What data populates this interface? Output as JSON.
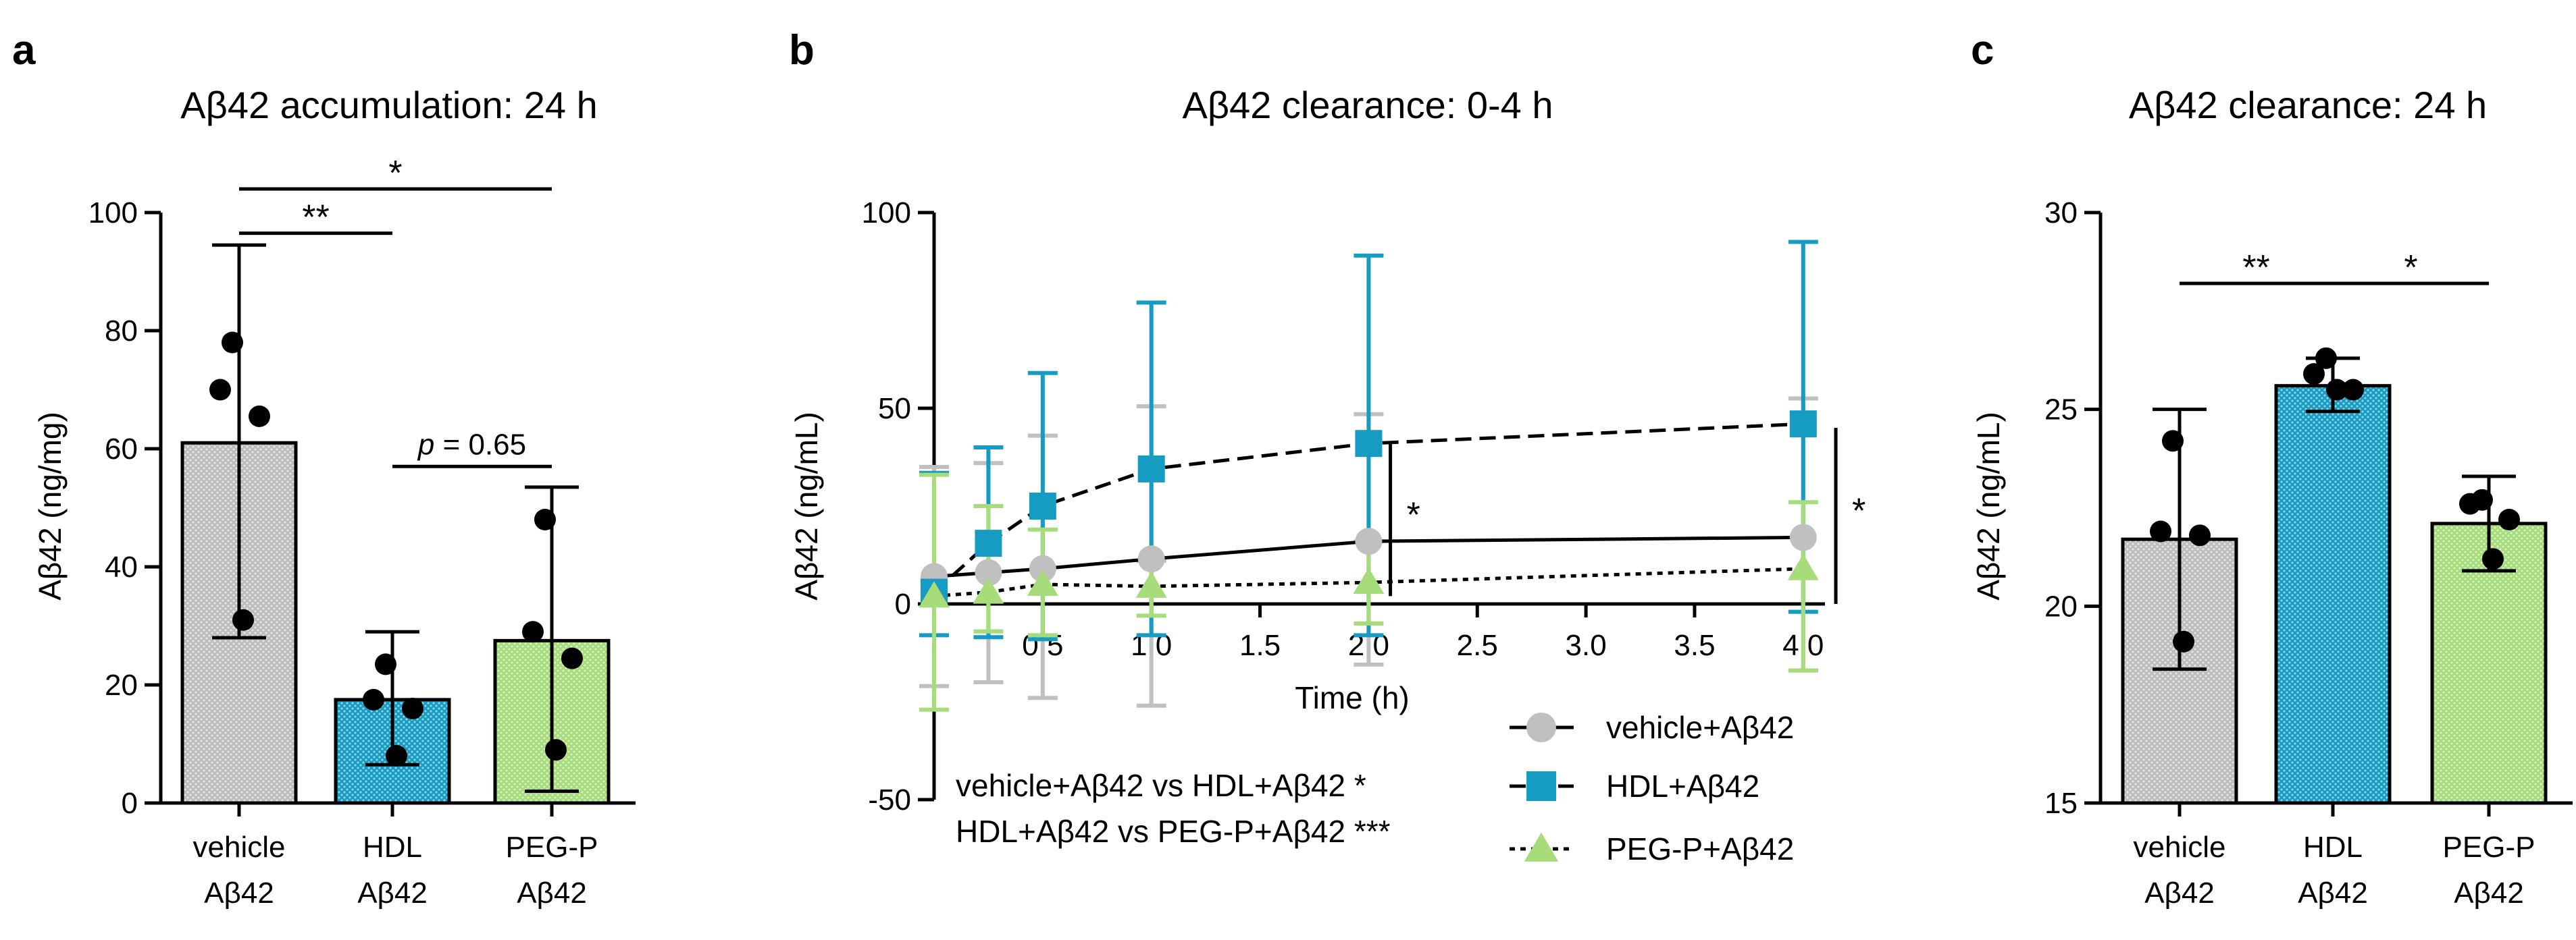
{
  "colors": {
    "vehicle": "#c0c0c0",
    "hdl": "#169cc2",
    "peg": "#a6dc7a",
    "ink": "#000000"
  },
  "chart_data": [
    {
      "panel": "a",
      "type": "bar",
      "title": "Aβ42 accumulation: 24 h",
      "ylabel": "Aβ42 (ng/mg)",
      "ylim": [
        0,
        100
      ],
      "yticks": [
        "0",
        "20",
        "40",
        "60",
        "80",
        "100"
      ],
      "categories": [
        [
          "vehicle",
          "Aβ42"
        ],
        [
          "HDL",
          "Aβ42"
        ],
        [
          "PEG-P",
          "Aβ42"
        ]
      ],
      "values": [
        61,
        17.5,
        27.5
      ],
      "error": [
        [
          28,
          94.5
        ],
        [
          6.5,
          29
        ],
        [
          2,
          53.5
        ]
      ],
      "points": [
        [
          78,
          70,
          65.5,
          31
        ],
        [
          23.5,
          17.5,
          16,
          8
        ],
        [
          48,
          29,
          24.5,
          9
        ]
      ],
      "comparisons": [
        {
          "from": 0,
          "to": 1,
          "label": "**",
          "y": 96.5
        },
        {
          "from": 0,
          "to": 2,
          "label": "*",
          "y": 104
        },
        {
          "from": 1,
          "to": 2,
          "label": "p = 0.65",
          "label_italic": "p",
          "label_rest": " = 0.65",
          "y": 57
        }
      ]
    },
    {
      "panel": "b",
      "type": "line",
      "title": "Aβ42 clearance: 0-4 h",
      "xlabel": "Time (h)",
      "ylabel": "Aβ42 (ng/mL)",
      "xlim": [
        0,
        4.1
      ],
      "ylim": [
        -50,
        100
      ],
      "xticks": [
        "0.5",
        "1.0",
        "1.5",
        "2.0",
        "2.5",
        "3.0",
        "3.5",
        "4.0"
      ],
      "yticks": [
        "-50",
        "0",
        "50",
        "100"
      ],
      "series": [
        {
          "name": "vehicle+Aβ42",
          "marker": "circle",
          "dash": "solid",
          "x": [
            0.0,
            0.25,
            0.5,
            1.0,
            2.0,
            4.0
          ],
          "y": [
            7,
            8,
            9,
            11.5,
            16,
            17
          ],
          "err": [
            [
              -21,
              35
            ],
            [
              -20,
              36
            ],
            [
              -24,
              43
            ],
            [
              -26,
              50.5
            ],
            [
              -15.5,
              48.5
            ],
            [
              -17,
              52.5
            ]
          ]
        },
        {
          "name": "HDL+Aβ42",
          "marker": "square",
          "dash": "dashed",
          "x": [
            0.0,
            0.25,
            0.5,
            1.0,
            2.0,
            4.0
          ],
          "y": [
            3,
            15.5,
            25,
            34.5,
            41,
            46
          ],
          "err": [
            [
              -8,
              33.5
            ],
            [
              -8.5,
              40
            ],
            [
              -9,
              59
            ],
            [
              -8,
              77
            ],
            [
              -8,
              89
            ],
            [
              -2,
              92.5
            ]
          ]
        },
        {
          "name": "PEG-P+Aβ42",
          "marker": "triangle",
          "dash": "dotted",
          "x": [
            0.0,
            0.25,
            0.5,
            1.0,
            2.0,
            4.0
          ],
          "y": [
            2,
            3,
            5,
            4.5,
            5.5,
            9
          ],
          "err": [
            [
              -27,
              33
            ],
            [
              -7,
              25
            ],
            [
              -8,
              19
            ],
            [
              -3,
              11
            ],
            [
              -5,
              16
            ],
            [
              -17,
              26
            ]
          ]
        }
      ],
      "annotations": [
        {
          "label": "*",
          "x": 2.1,
          "y_from": 2,
          "y_to": 41
        },
        {
          "label": "*",
          "x": 4.15,
          "y_from": 0,
          "y_to": 45
        }
      ],
      "notes": [
        "vehicle+Aβ42 vs HDL+Aβ42 *",
        "HDL+Aβ42 vs PEG-P+Aβ42 ***"
      ]
    },
    {
      "panel": "c",
      "type": "bar",
      "title": "Aβ42 clearance: 24 h",
      "ylabel": "Aβ42 (ng/mL)",
      "ylim": [
        15,
        30
      ],
      "yticks": [
        "15",
        "20",
        "25",
        "30"
      ],
      "categories": [
        [
          "vehicle",
          "Aβ42"
        ],
        [
          "HDL",
          "Aβ42"
        ],
        [
          "PEG-P",
          "Aβ42"
        ]
      ],
      "values": [
        21.7,
        25.6,
        22.1
      ],
      "error": [
        [
          18.4,
          25
        ],
        [
          24.95,
          26.3
        ],
        [
          20.9,
          23.3
        ]
      ],
      "points": [
        [
          24.2,
          21.9,
          21.8,
          19.1
        ],
        [
          26.3,
          25.9,
          25.5,
          25.5
        ],
        [
          22.7,
          22.6,
          22.2,
          21.2
        ]
      ],
      "comparisons": [
        {
          "from": 0,
          "to": 1,
          "label": "**",
          "y": 28.2
        },
        {
          "from": 1,
          "to": 2,
          "label": "*",
          "y": 28.2
        }
      ]
    }
  ]
}
